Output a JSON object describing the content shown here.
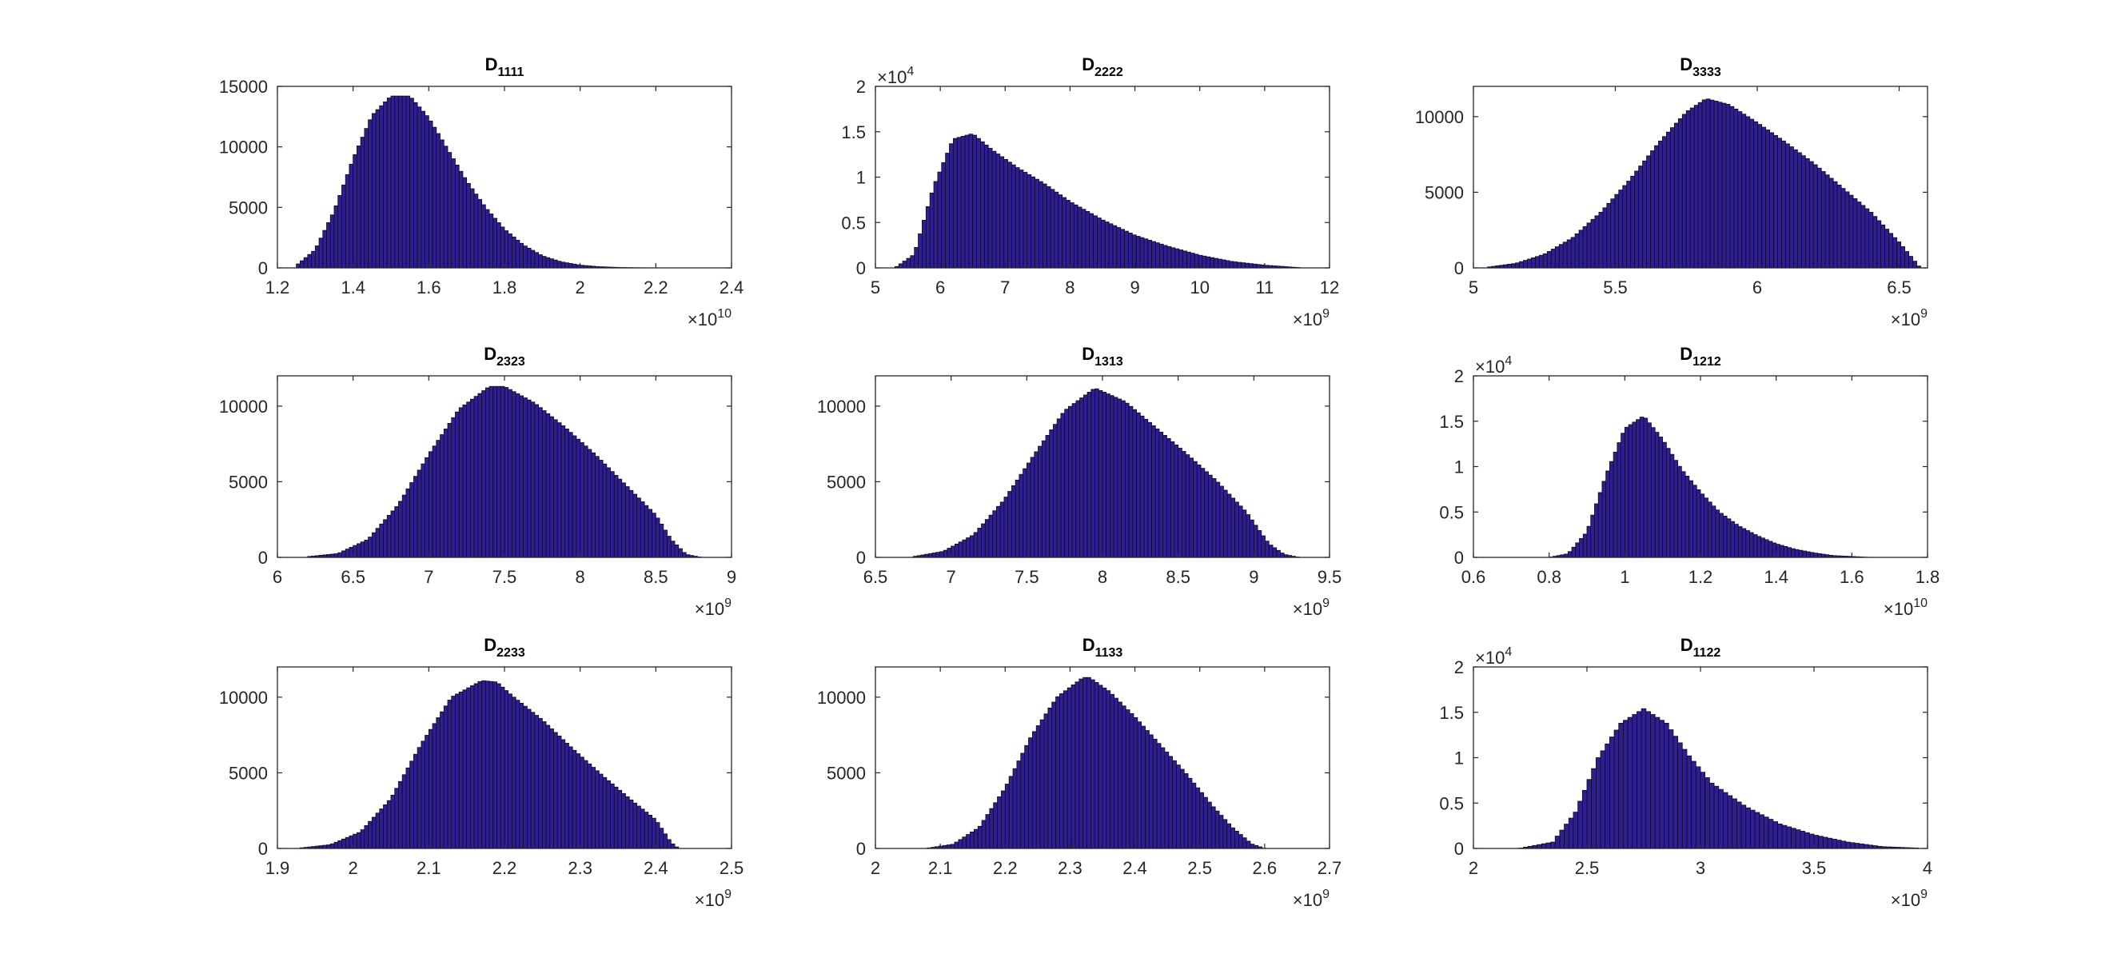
{
  "figure": {
    "background": "#ffffff"
  },
  "style": {
    "bar_fill": "#2e1f8f",
    "bar_edge": "#0d0630",
    "axis_color": "#262626"
  },
  "chart_data": [
    {
      "type": "bar",
      "subtype": "histogram",
      "title": {
        "main": "D",
        "sub": "1111"
      },
      "xlim": [
        1.2,
        2.4
      ],
      "xticks": [
        "1.2",
        "1.4",
        "1.6",
        "1.8",
        "2",
        "2.2",
        "2.4"
      ],
      "x_exponent": "10",
      "ylim": [
        0,
        15000
      ],
      "yticks": [
        "0",
        "5000",
        "10000",
        "15000"
      ],
      "y_exponent": "",
      "bin_width": 0.01,
      "x": [
        1.25,
        1.3,
        1.35,
        1.4,
        1.45,
        1.5,
        1.55,
        1.6,
        1.65,
        1.7,
        1.75,
        1.8,
        1.85,
        1.9,
        1.95,
        2.0,
        2.05,
        2.1,
        2.15,
        2.2
      ],
      "y": [
        200,
        1500,
        4700,
        9000,
        12600,
        14200,
        14200,
        12400,
        9800,
        7200,
        5000,
        3200,
        1900,
        1000,
        500,
        230,
        100,
        40,
        15,
        0
      ]
    },
    {
      "type": "bar",
      "subtype": "histogram",
      "title": {
        "main": "D",
        "sub": "2222"
      },
      "xlim": [
        5,
        12
      ],
      "xticks": [
        "5",
        "6",
        "7",
        "8",
        "9",
        "10",
        "11",
        "12"
      ],
      "x_exponent": "9",
      "ylim": [
        0,
        2
      ],
      "yticks": [
        "0",
        "0.5",
        "1",
        "1.5",
        "2"
      ],
      "y_exponent": "4",
      "bin_width": 0.06,
      "x": [
        5.3,
        5.6,
        5.9,
        6.2,
        6.5,
        6.8,
        7.2,
        7.6,
        8.0,
        8.5,
        9.0,
        9.5,
        10.0,
        10.5,
        11.0,
        11.5
      ],
      "y": [
        0,
        0.15,
        0.9,
        1.42,
        1.48,
        1.3,
        1.1,
        0.93,
        0.73,
        0.53,
        0.36,
        0.24,
        0.14,
        0.07,
        0.03,
        0.005
      ]
    },
    {
      "type": "bar",
      "subtype": "histogram",
      "title": {
        "main": "D",
        "sub": "3333"
      },
      "xlim": [
        5,
        6.6
      ],
      "xticks": [
        "5",
        "5.5",
        "6",
        "6.5"
      ],
      "x_exponent": "9",
      "ylim": [
        0,
        12000
      ],
      "yticks": [
        "0",
        "5000",
        "10000"
      ],
      "y_exponent": "",
      "bin_width": 0.014,
      "x": [
        5.05,
        5.15,
        5.25,
        5.35,
        5.45,
        5.55,
        5.65,
        5.75,
        5.82,
        5.9,
        6.0,
        6.1,
        6.2,
        6.3,
        6.4,
        6.5,
        6.57
      ],
      "y": [
        50,
        300,
        900,
        2000,
        3700,
        5800,
        8200,
        10300,
        11200,
        10800,
        9600,
        8300,
        6900,
        5300,
        3700,
        1700,
        100
      ]
    },
    {
      "type": "bar",
      "subtype": "histogram",
      "title": {
        "main": "D",
        "sub": "2323"
      },
      "xlim": [
        6,
        9
      ],
      "xticks": [
        "6",
        "6.5",
        "7",
        "7.5",
        "8",
        "8.5",
        "9"
      ],
      "x_exponent": "9",
      "ylim": [
        0,
        12000
      ],
      "yticks": [
        "0",
        "5000",
        "10000"
      ],
      "y_exponent": "",
      "bin_width": 0.025,
      "x": [
        6.2,
        6.4,
        6.6,
        6.8,
        7.0,
        7.2,
        7.4,
        7.5,
        7.7,
        7.9,
        8.1,
        8.3,
        8.5,
        8.6,
        8.7,
        8.8
      ],
      "y": [
        50,
        250,
        1200,
        3500,
        6800,
        9800,
        11300,
        11300,
        10200,
        8600,
        6800,
        4800,
        2800,
        1200,
        200,
        0
      ]
    },
    {
      "type": "bar",
      "subtype": "histogram",
      "title": {
        "main": "D",
        "sub": "1313"
      },
      "xlim": [
        6.5,
        9.5
      ],
      "xticks": [
        "6.5",
        "7",
        "7.5",
        "8",
        "8.5",
        "9",
        "9.5"
      ],
      "x_exponent": "9",
      "ylim": [
        0,
        12000
      ],
      "yticks": [
        "0",
        "5000",
        "10000"
      ],
      "y_exponent": "",
      "bin_width": 0.025,
      "x": [
        6.75,
        6.95,
        7.15,
        7.35,
        7.55,
        7.75,
        7.95,
        8.15,
        8.35,
        8.55,
        8.75,
        8.95,
        9.1,
        9.2,
        9.3
      ],
      "y": [
        50,
        400,
        1500,
        3800,
        6800,
        9700,
        11200,
        10300,
        8600,
        6900,
        5100,
        3000,
        900,
        200,
        0
      ]
    },
    {
      "type": "bar",
      "subtype": "histogram",
      "title": {
        "main": "D",
        "sub": "1212"
      },
      "xlim": [
        0.6,
        1.8
      ],
      "xticks": [
        "0.6",
        "0.8",
        "1",
        "1.2",
        "1.4",
        "1.6",
        "1.8"
      ],
      "x_exponent": "10",
      "ylim": [
        0,
        2
      ],
      "yticks": [
        "0",
        "0.5",
        "1",
        "1.5",
        "2"
      ],
      "y_exponent": "4",
      "bin_width": 0.01,
      "x": [
        0.8,
        0.85,
        0.9,
        0.95,
        1.0,
        1.05,
        1.1,
        1.15,
        1.2,
        1.25,
        1.3,
        1.35,
        1.4,
        1.45,
        1.5,
        1.55,
        1.6,
        1.65
      ],
      "y": [
        0,
        0.04,
        0.28,
        0.9,
        1.42,
        1.56,
        1.3,
        0.97,
        0.72,
        0.5,
        0.35,
        0.24,
        0.15,
        0.09,
        0.05,
        0.02,
        0.01,
        0
      ]
    },
    {
      "type": "bar",
      "subtype": "histogram",
      "title": {
        "main": "D",
        "sub": "2233"
      },
      "xlim": [
        1.9,
        2.5
      ],
      "xticks": [
        "1.9",
        "2",
        "2.1",
        "2.2",
        "2.3",
        "2.4",
        "2.5"
      ],
      "x_exponent": "9",
      "ylim": [
        0,
        12000
      ],
      "yticks": [
        "0",
        "5000",
        "10000"
      ],
      "y_exponent": "",
      "bin_width": 0.005,
      "x": [
        1.93,
        1.97,
        2.01,
        2.05,
        2.09,
        2.13,
        2.17,
        2.19,
        2.21,
        2.25,
        2.29,
        2.33,
        2.37,
        2.4,
        2.42,
        2.43
      ],
      "y": [
        30,
        250,
        1100,
        3300,
        6900,
        10000,
        11100,
        11000,
        10100,
        8500,
        6600,
        4800,
        3100,
        1900,
        400,
        0
      ]
    },
    {
      "type": "bar",
      "subtype": "histogram",
      "title": {
        "main": "D",
        "sub": "1133"
      },
      "xlim": [
        2,
        2.7
      ],
      "xticks": [
        "2",
        "2.1",
        "2.2",
        "2.3",
        "2.4",
        "2.5",
        "2.6",
        "2.7"
      ],
      "x_exponent": "9",
      "ylim": [
        0,
        12000
      ],
      "yticks": [
        "0",
        "5000",
        "10000"
      ],
      "y_exponent": "",
      "bin_width": 0.006,
      "x": [
        2.08,
        2.12,
        2.16,
        2.2,
        2.24,
        2.28,
        2.32,
        2.33,
        2.36,
        2.4,
        2.44,
        2.48,
        2.52,
        2.55,
        2.58,
        2.6
      ],
      "y": [
        20,
        280,
        1400,
        4000,
        7400,
        10000,
        11300,
        11300,
        10400,
        8700,
        6800,
        4900,
        2800,
        1400,
        300,
        0
      ]
    },
    {
      "type": "bar",
      "subtype": "histogram",
      "title": {
        "main": "D",
        "sub": "1122"
      },
      "xlim": [
        2,
        4
      ],
      "xticks": [
        "2",
        "2.5",
        "3",
        "3.5",
        "4"
      ],
      "x_exponent": "9",
      "ylim": [
        0,
        2
      ],
      "yticks": [
        "0",
        "0.5",
        "1",
        "1.5",
        "2"
      ],
      "y_exponent": "4",
      "bin_width": 0.02,
      "x": [
        2.2,
        2.35,
        2.45,
        2.55,
        2.65,
        2.75,
        2.85,
        2.95,
        3.05,
        3.2,
        3.35,
        3.5,
        3.65,
        3.8,
        3.95
      ],
      "y": [
        0,
        0.07,
        0.4,
        1.0,
        1.38,
        1.54,
        1.38,
        1.02,
        0.72,
        0.46,
        0.27,
        0.15,
        0.07,
        0.02,
        0.005
      ]
    }
  ]
}
